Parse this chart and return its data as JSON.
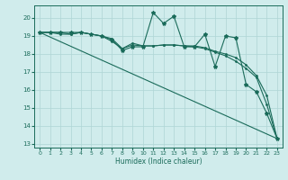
{
  "background_color": "#d0ecec",
  "grid_color": "#aed4d4",
  "line_color": "#1a6b5a",
  "xlabel": "Humidex (Indice chaleur)",
  "xlim": [
    -0.5,
    23.5
  ],
  "ylim": [
    12.8,
    20.7
  ],
  "yticks": [
    13,
    14,
    15,
    16,
    17,
    18,
    19,
    20
  ],
  "xticks": [
    0,
    1,
    2,
    3,
    4,
    5,
    6,
    7,
    8,
    9,
    10,
    11,
    12,
    13,
    14,
    15,
    16,
    17,
    18,
    19,
    20,
    21,
    22,
    23
  ],
  "series": [
    {
      "x": [
        0,
        1,
        2,
        3,
        4,
        5,
        6,
        7,
        8,
        9,
        10,
        11,
        12,
        13,
        14,
        15,
        16,
        17,
        18,
        19,
        20,
        21,
        22,
        23
      ],
      "y": [
        19.2,
        19.2,
        19.2,
        19.2,
        19.2,
        19.1,
        19.0,
        18.8,
        18.2,
        18.4,
        18.4,
        20.3,
        19.7,
        20.1,
        18.4,
        18.4,
        19.1,
        17.3,
        19.0,
        18.9,
        16.3,
        15.9,
        14.7,
        13.3
      ],
      "marker": "*",
      "markersize": 3,
      "linewidth": 0.8
    },
    {
      "x": [
        0,
        23
      ],
      "y": [
        19.2,
        13.3
      ],
      "marker": "None",
      "markersize": 0,
      "linewidth": 0.8
    },
    {
      "x": [
        0,
        1,
        2,
        3,
        4,
        5,
        6,
        7,
        8,
        9,
        10,
        11,
        12,
        13,
        14,
        15,
        16,
        17,
        18,
        19,
        20,
        21,
        22,
        23
      ],
      "y": [
        19.2,
        19.2,
        19.2,
        19.1,
        19.2,
        19.1,
        19.0,
        18.7,
        18.3,
        18.5,
        18.45,
        18.45,
        18.5,
        18.5,
        18.45,
        18.4,
        18.3,
        18.1,
        17.9,
        17.6,
        17.2,
        16.7,
        15.2,
        13.3
      ],
      "marker": ".",
      "markersize": 2,
      "linewidth": 0.8
    },
    {
      "x": [
        0,
        1,
        2,
        3,
        4,
        5,
        6,
        7,
        8,
        9,
        10,
        11,
        12,
        13,
        14,
        15,
        16,
        17,
        18,
        19,
        20,
        21,
        22,
        23
      ],
      "y": [
        19.2,
        19.2,
        19.1,
        19.1,
        19.2,
        19.1,
        19.0,
        18.85,
        18.3,
        18.6,
        18.45,
        18.45,
        18.5,
        18.5,
        18.45,
        18.45,
        18.35,
        18.15,
        18.0,
        17.8,
        17.4,
        16.8,
        15.7,
        13.3
      ],
      "marker": ".",
      "markersize": 2,
      "linewidth": 0.8
    }
  ]
}
